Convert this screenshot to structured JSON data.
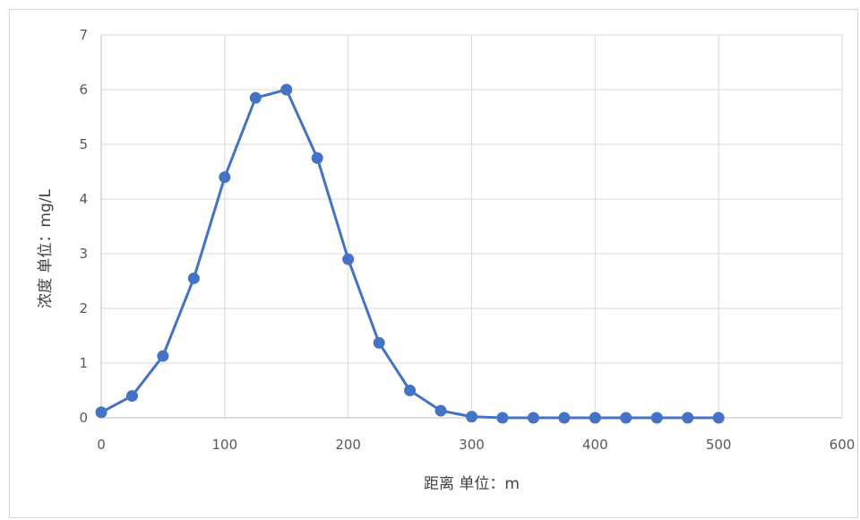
{
  "chart_data": {
    "type": "line",
    "xlabel": "距离 单位：m",
    "ylabel": "浓度 单位：mg/L",
    "xlim": [
      0,
      600
    ],
    "ylim": [
      0,
      7
    ],
    "xticks": [
      "0",
      "100",
      "200",
      "300",
      "400",
      "500",
      "600"
    ],
    "yticks": [
      "0",
      "1",
      "2",
      "3",
      "4",
      "5",
      "6",
      "7"
    ],
    "grid": true,
    "legend": "none",
    "series": [
      {
        "color": "#4472c4",
        "x": [
          0,
          25,
          50,
          75,
          100,
          125,
          150,
          175,
          200,
          225,
          250,
          275,
          300,
          325,
          350,
          375,
          400,
          425,
          450,
          475,
          500
        ],
        "y": [
          0.1,
          0.4,
          1.13,
          2.55,
          4.4,
          5.85,
          6.0,
          4.75,
          2.9,
          1.37,
          0.5,
          0.13,
          0.02,
          0.0,
          0.0,
          0.0,
          0.0,
          0.0,
          0.0,
          0.0,
          0.0
        ]
      }
    ]
  }
}
